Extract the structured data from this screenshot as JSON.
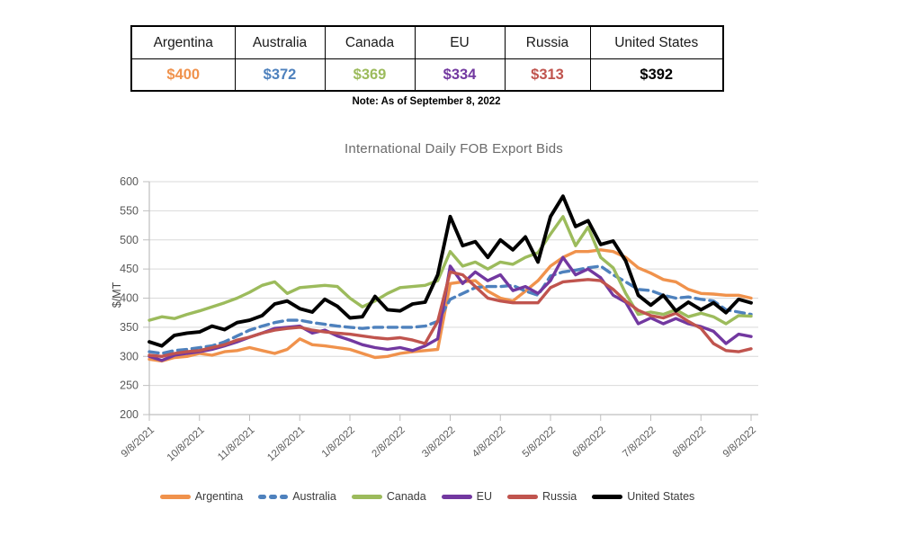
{
  "table": {
    "columns": [
      {
        "label": "Argentina",
        "value": "$400",
        "color": "#F0924C"
      },
      {
        "label": "Australia",
        "value": "$372",
        "color": "#4E81BD"
      },
      {
        "label": "Canada",
        "value": "$369",
        "color": "#9CBB5C"
      },
      {
        "label": "EU",
        "value": "$334",
        "color": "#7238A0"
      },
      {
        "label": "Russia",
        "value": "$313",
        "color": "#C0544E"
      },
      {
        "label": "United States",
        "value": "$392",
        "color": "#000000"
      }
    ],
    "note": "Note: As of September 8, 2022"
  },
  "chart_data": {
    "type": "line",
    "title": "International Daily FOB Export Bids",
    "xlabel": "",
    "ylabel": "$/MT",
    "ylim": [
      200,
      600
    ],
    "y_ticks": [
      200,
      250,
      300,
      350,
      400,
      450,
      500,
      550,
      600
    ],
    "grid": "horizontal",
    "legend_position": "bottom",
    "x_tick_labels": [
      "9/8/2021",
      "10/8/2021",
      "11/8/2021",
      "12/8/2021",
      "1/8/2022",
      "2/8/2022",
      "3/8/2022",
      "4/8/2022",
      "5/8/2022",
      "6/8/2022",
      "7/8/2022",
      "8/8/2022",
      "9/8/2022"
    ],
    "points_per_month": 4,
    "series": [
      {
        "name": "Argentina",
        "color": "#F0924C",
        "dashed": false,
        "values": [
          295,
          292,
          298,
          300,
          305,
          302,
          308,
          310,
          315,
          310,
          305,
          312,
          330,
          320,
          318,
          315,
          312,
          305,
          298,
          300,
          305,
          308,
          310,
          312,
          425,
          428,
          430,
          412,
          400,
          395,
          412,
          430,
          455,
          470,
          480,
          480,
          483,
          480,
          470,
          452,
          443,
          432,
          428,
          415,
          408,
          407,
          405,
          405,
          400
        ]
      },
      {
        "name": "Australia",
        "color": "#4E81BD",
        "dashed": true,
        "values": [
          308,
          305,
          310,
          312,
          315,
          318,
          325,
          335,
          345,
          352,
          358,
          362,
          362,
          358,
          355,
          352,
          350,
          348,
          350,
          350,
          350,
          350,
          352,
          360,
          398,
          408,
          418,
          420,
          420,
          422,
          412,
          405,
          438,
          445,
          448,
          452,
          455,
          440,
          428,
          415,
          413,
          405,
          400,
          402,
          398,
          395,
          380,
          376,
          372
        ]
      },
      {
        "name": "Canada",
        "color": "#9CBB5C",
        "dashed": false,
        "values": [
          362,
          368,
          365,
          372,
          378,
          385,
          392,
          400,
          410,
          422,
          428,
          408,
          418,
          420,
          422,
          420,
          400,
          385,
          395,
          408,
          418,
          420,
          422,
          430,
          480,
          455,
          462,
          450,
          462,
          458,
          470,
          478,
          510,
          540,
          490,
          522,
          470,
          452,
          408,
          372,
          376,
          372,
          380,
          368,
          374,
          368,
          356,
          370,
          369
        ]
      },
      {
        "name": "EU",
        "color": "#7238A0",
        "dashed": false,
        "values": [
          300,
          293,
          302,
          305,
          308,
          312,
          318,
          325,
          333,
          340,
          348,
          350,
          352,
          340,
          345,
          335,
          328,
          320,
          315,
          312,
          315,
          310,
          318,
          330,
          455,
          425,
          445,
          430,
          440,
          413,
          420,
          408,
          430,
          470,
          440,
          450,
          435,
          405,
          393,
          356,
          366,
          356,
          365,
          356,
          351,
          343,
          322,
          338,
          334
        ]
      },
      {
        "name": "Russia",
        "color": "#C0544E",
        "dashed": false,
        "values": [
          302,
          300,
          305,
          308,
          310,
          315,
          320,
          328,
          333,
          340,
          345,
          348,
          350,
          345,
          342,
          340,
          338,
          335,
          332,
          330,
          332,
          328,
          322,
          360,
          445,
          440,
          420,
          400,
          395,
          392,
          392,
          392,
          418,
          428,
          430,
          432,
          430,
          415,
          395,
          379,
          370,
          366,
          374,
          360,
          348,
          322,
          310,
          308,
          313
        ]
      },
      {
        "name": "United States",
        "color": "#000000",
        "dashed": false,
        "values": [
          325,
          318,
          336,
          340,
          342,
          352,
          346,
          358,
          362,
          370,
          390,
          395,
          382,
          376,
          398,
          386,
          366,
          368,
          403,
          380,
          378,
          390,
          393,
          440,
          540,
          490,
          497,
          470,
          500,
          483,
          505,
          462,
          540,
          575,
          523,
          533,
          492,
          498,
          464,
          405,
          388,
          405,
          378,
          393,
          380,
          392,
          375,
          398,
          392
        ]
      }
    ]
  }
}
